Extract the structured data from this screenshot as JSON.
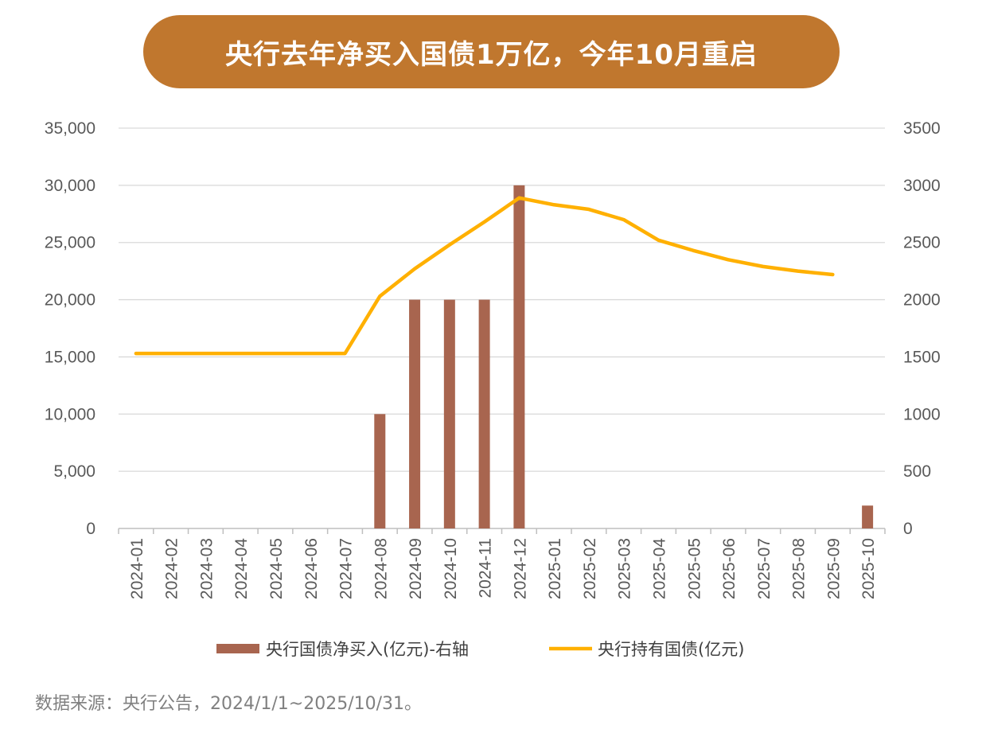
{
  "title": "央行去年净买入国债1万亿，今年10月重启",
  "source": "数据来源：央行公告，2024/1/1~2025/10/31。",
  "colors": {
    "title_bg": "#C0772E",
    "bar": "#A8654F",
    "line": "#FFB000",
    "grid": "#D9D9D9"
  },
  "chart_data": {
    "type": "bar+line",
    "categories": [
      "2024-01",
      "2024-02",
      "2024-03",
      "2024-04",
      "2024-05",
      "2024-06",
      "2024-07",
      "2024-08",
      "2024-09",
      "2024-10",
      "2024-11",
      "2024-12",
      "2025-01",
      "2025-02",
      "2025-03",
      "2025-04",
      "2025-05",
      "2025-06",
      "2025-07",
      "2025-08",
      "2025-09",
      "2025-10"
    ],
    "left_axis": {
      "ylim": [
        0,
        35000
      ],
      "ticks": [
        "0",
        "5,000",
        "10,000",
        "15,000",
        "20,000",
        "25,000",
        "30,000",
        "35,000"
      ]
    },
    "right_axis": {
      "ylim": [
        0,
        3500
      ],
      "ticks": [
        "0",
        "500",
        "1000",
        "1500",
        "2000",
        "2500",
        "3000",
        "3500"
      ]
    },
    "series": [
      {
        "name": "央行国债净买入(亿元)-右轴",
        "type": "bar",
        "axis": "right",
        "values": [
          0,
          0,
          0,
          0,
          0,
          0,
          0,
          1000,
          2000,
          2000,
          2000,
          3000,
          0,
          0,
          0,
          0,
          0,
          0,
          0,
          0,
          0,
          200
        ]
      },
      {
        "name": "央行持有国债(亿元)",
        "type": "line",
        "axis": "left",
        "values": [
          15300,
          15300,
          15300,
          15300,
          15300,
          15300,
          15300,
          20300,
          22700,
          24800,
          26800,
          28900,
          28300,
          27900,
          27000,
          25200,
          24300,
          23500,
          22900,
          22500,
          22200,
          null
        ]
      }
    ],
    "grid": true,
    "legend": "bottom"
  }
}
